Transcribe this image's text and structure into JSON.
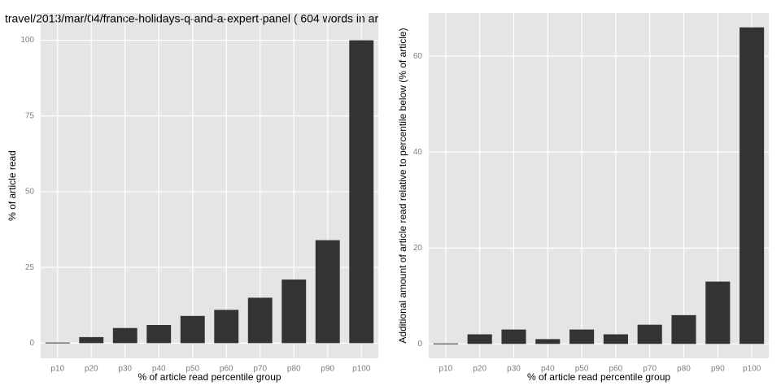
{
  "chart_data": [
    {
      "type": "bar",
      "title": "travel/2013/mar/04/france-holidays-q-and-a-expert-panel ( 604 words in ar",
      "x_label": "% of article read percentile group",
      "y_label": "% of article read",
      "categories": [
        "p10",
        "p20",
        "p30",
        "p40",
        "p50",
        "p60",
        "p70",
        "p80",
        "p90",
        "p100"
      ],
      "values": [
        0.2,
        2,
        5,
        6,
        9,
        11,
        15,
        21,
        34,
        100
      ],
      "color": "#333333",
      "ylim": [
        -5,
        109
      ],
      "yticks": [
        0,
        25,
        50,
        75,
        100
      ],
      "grid": true
    },
    {
      "type": "bar",
      "x_label": "% of article read percentile group",
      "y_label": "Additional amount of article read relative to percentile below (% of article)",
      "categories": [
        "p10",
        "p20",
        "p30",
        "p40",
        "p50",
        "p60",
        "p70",
        "p80",
        "p90",
        "p100"
      ],
      "values": [
        0.1,
        2,
        3,
        1,
        3,
        2,
        4,
        6,
        13,
        66
      ],
      "color": "#333333",
      "ylim": [
        -3,
        69
      ],
      "yticks": [
        0,
        20,
        40,
        60
      ],
      "grid": true
    }
  ]
}
